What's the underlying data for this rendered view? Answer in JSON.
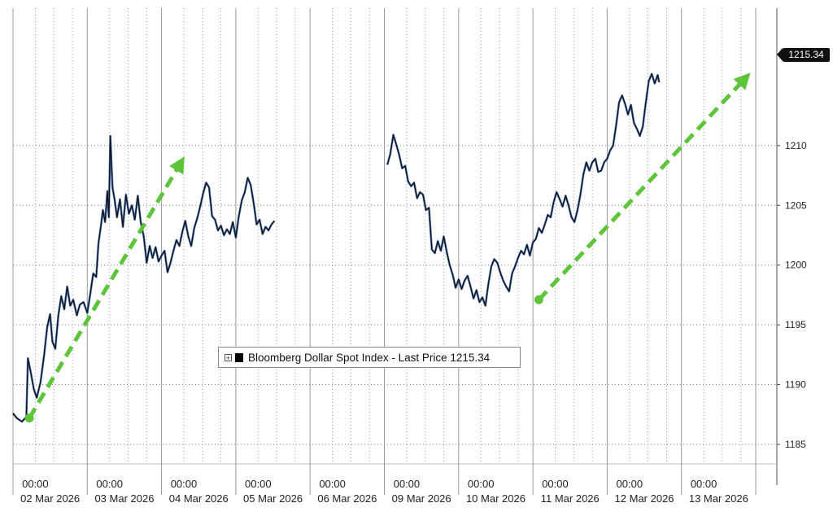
{
  "chart_data": {
    "type": "line",
    "title": "",
    "series": [
      {
        "name": "Bloomberg Dollar Spot Index - Last Price",
        "last_value_label": "1215.34",
        "points": [
          [
            0.0,
            1187.6
          ],
          [
            0.05,
            1187.2
          ],
          [
            0.12,
            1186.9
          ],
          [
            0.18,
            1187.3
          ],
          [
            0.2,
            1192.2
          ],
          [
            0.24,
            1191.0
          ],
          [
            0.28,
            1189.6
          ],
          [
            0.32,
            1188.9
          ],
          [
            0.37,
            1190.2
          ],
          [
            0.42,
            1192.5
          ],
          [
            0.46,
            1194.8
          ],
          [
            0.5,
            1195.9
          ],
          [
            0.53,
            1193.6
          ],
          [
            0.57,
            1193.0
          ],
          [
            0.61,
            1195.8
          ],
          [
            0.65,
            1197.4
          ],
          [
            0.69,
            1196.3
          ],
          [
            0.73,
            1198.2
          ],
          [
            0.77,
            1196.6
          ],
          [
            0.81,
            1197.1
          ],
          [
            0.86,
            1195.8
          ],
          [
            0.9,
            1196.7
          ],
          [
            0.95,
            1196.9
          ],
          [
            1.0,
            1196.0
          ],
          [
            1.04,
            1197.6
          ],
          [
            1.08,
            1199.3
          ],
          [
            1.12,
            1199.0
          ],
          [
            1.15,
            1201.8
          ],
          [
            1.18,
            1203.1
          ],
          [
            1.21,
            1204.6
          ],
          [
            1.24,
            1203.6
          ],
          [
            1.27,
            1206.2
          ],
          [
            1.29,
            1204.0
          ],
          [
            1.31,
            1210.8
          ],
          [
            1.34,
            1206.5
          ],
          [
            1.37,
            1205.4
          ],
          [
            1.4,
            1204.0
          ],
          [
            1.44,
            1205.5
          ],
          [
            1.48,
            1203.2
          ],
          [
            1.52,
            1205.9
          ],
          [
            1.56,
            1204.3
          ],
          [
            1.6,
            1205.0
          ],
          [
            1.64,
            1203.8
          ],
          [
            1.68,
            1205.8
          ],
          [
            1.72,
            1203.6
          ],
          [
            1.76,
            1202.4
          ],
          [
            1.8,
            1200.2
          ],
          [
            1.84,
            1201.6
          ],
          [
            1.88,
            1200.6
          ],
          [
            1.92,
            1201.5
          ],
          [
            1.96,
            1200.3
          ],
          [
            2.0,
            1200.8
          ],
          [
            2.04,
            1201.2
          ],
          [
            2.08,
            1199.4
          ],
          [
            2.12,
            1200.2
          ],
          [
            2.16,
            1201.2
          ],
          [
            2.2,
            1202.1
          ],
          [
            2.24,
            1201.6
          ],
          [
            2.28,
            1202.8
          ],
          [
            2.32,
            1203.7
          ],
          [
            2.36,
            1202.4
          ],
          [
            2.4,
            1201.6
          ],
          [
            2.44,
            1203.1
          ],
          [
            2.48,
            1203.9
          ],
          [
            2.52,
            1204.9
          ],
          [
            2.56,
            1206.0
          ],
          [
            2.6,
            1206.9
          ],
          [
            2.64,
            1206.5
          ],
          [
            2.68,
            1204.1
          ],
          [
            2.72,
            1203.8
          ],
          [
            2.76,
            1202.9
          ],
          [
            2.8,
            1203.3
          ],
          [
            2.84,
            1202.5
          ],
          [
            2.88,
            1203.0
          ],
          [
            2.92,
            1202.6
          ],
          [
            2.96,
            1203.6
          ],
          [
            3.0,
            1202.3
          ],
          [
            3.04,
            1204.1
          ],
          [
            3.08,
            1205.4
          ],
          [
            3.12,
            1206.1
          ],
          [
            3.16,
            1207.3
          ],
          [
            3.2,
            1206.7
          ],
          [
            3.24,
            1205.2
          ],
          [
            3.28,
            1203.4
          ],
          [
            3.32,
            1203.8
          ],
          [
            3.36,
            1202.6
          ],
          [
            3.4,
            1203.2
          ],
          [
            3.44,
            1202.9
          ],
          [
            3.48,
            1203.4
          ],
          [
            3.52,
            1203.7
          ],
          null,
          [
            5.04,
            1208.4
          ],
          [
            5.08,
            1209.3
          ],
          [
            5.12,
            1210.9
          ],
          [
            5.16,
            1210.1
          ],
          [
            5.2,
            1209.2
          ],
          [
            5.24,
            1208.1
          ],
          [
            5.28,
            1208.3
          ],
          [
            5.32,
            1207.0
          ],
          [
            5.36,
            1206.6
          ],
          [
            5.4,
            1206.9
          ],
          [
            5.44,
            1205.6
          ],
          [
            5.48,
            1206.1
          ],
          [
            5.52,
            1205.9
          ],
          [
            5.56,
            1204.6
          ],
          [
            5.6,
            1204.8
          ],
          [
            5.64,
            1201.3
          ],
          [
            5.68,
            1201.0
          ],
          [
            5.72,
            1202.0
          ],
          [
            5.76,
            1201.2
          ],
          [
            5.8,
            1202.4
          ],
          [
            5.84,
            1201.1
          ],
          [
            5.88,
            1200.0
          ],
          [
            5.92,
            1199.2
          ],
          [
            5.96,
            1198.1
          ],
          [
            6.0,
            1198.8
          ],
          [
            6.04,
            1198.0
          ],
          [
            6.08,
            1198.7
          ],
          [
            6.12,
            1199.1
          ],
          [
            6.16,
            1198.2
          ],
          [
            6.2,
            1197.2
          ],
          [
            6.24,
            1197.9
          ],
          [
            6.28,
            1196.9
          ],
          [
            6.32,
            1197.3
          ],
          [
            6.36,
            1196.6
          ],
          [
            6.4,
            1198.4
          ],
          [
            6.44,
            1199.9
          ],
          [
            6.48,
            1200.5
          ],
          [
            6.52,
            1200.2
          ],
          [
            6.56,
            1199.4
          ],
          [
            6.6,
            1198.7
          ],
          [
            6.64,
            1198.2
          ],
          [
            6.68,
            1197.8
          ],
          [
            6.72,
            1199.3
          ],
          [
            6.76,
            1199.9
          ],
          [
            6.8,
            1200.6
          ],
          [
            6.84,
            1201.2
          ],
          [
            6.88,
            1200.9
          ],
          [
            6.92,
            1201.7
          ],
          [
            6.96,
            1200.8
          ],
          [
            7.0,
            1201.9
          ],
          [
            7.04,
            1202.2
          ],
          [
            7.08,
            1203.1
          ],
          [
            7.12,
            1202.7
          ],
          [
            7.16,
            1203.4
          ],
          [
            7.2,
            1204.2
          ],
          [
            7.24,
            1204.0
          ],
          [
            7.28,
            1205.3
          ],
          [
            7.32,
            1206.1
          ],
          [
            7.36,
            1205.5
          ],
          [
            7.4,
            1204.9
          ],
          [
            7.44,
            1205.8
          ],
          [
            7.48,
            1205.0
          ],
          [
            7.52,
            1204.0
          ],
          [
            7.56,
            1203.6
          ],
          [
            7.6,
            1204.6
          ],
          [
            7.64,
            1205.9
          ],
          [
            7.68,
            1207.6
          ],
          [
            7.72,
            1208.6
          ],
          [
            7.76,
            1207.9
          ],
          [
            7.8,
            1208.6
          ],
          [
            7.84,
            1208.9
          ],
          [
            7.88,
            1207.8
          ],
          [
            7.92,
            1207.9
          ],
          [
            7.96,
            1208.6
          ],
          [
            8.0,
            1208.9
          ],
          [
            8.04,
            1209.6
          ],
          [
            8.08,
            1210.0
          ],
          [
            8.12,
            1211.7
          ],
          [
            8.16,
            1213.6
          ],
          [
            8.2,
            1214.2
          ],
          [
            8.24,
            1213.5
          ],
          [
            8.28,
            1212.6
          ],
          [
            8.32,
            1213.4
          ],
          [
            8.36,
            1211.9
          ],
          [
            8.4,
            1211.4
          ],
          [
            8.44,
            1210.8
          ],
          [
            8.48,
            1211.6
          ],
          [
            8.52,
            1213.6
          ],
          [
            8.56,
            1215.4
          ],
          [
            8.6,
            1216.0
          ],
          [
            8.64,
            1215.2
          ],
          [
            8.68,
            1215.9
          ],
          [
            8.7,
            1215.3
          ]
        ]
      }
    ],
    "ylim": [
      1183.5,
      1221.5
    ],
    "yticks": [
      1185,
      1190,
      1195,
      1200,
      1205,
      1210
    ],
    "x_day_labels": [
      "02 Mar 2026",
      "03 Mar 2026",
      "04 Mar 2026",
      "05 Mar 2026",
      "06 Mar 2026",
      "09 Mar 2026",
      "10 Mar 2026",
      "11 Mar 2026",
      "12 Mar 2026",
      "13 Mar 2026"
    ],
    "x_time_label": "00:00",
    "x_time_positions": [
      0.3,
      1.3,
      2.3,
      3.3,
      4.3,
      5.3,
      6.3,
      7.3,
      8.3,
      9.3
    ],
    "annotations": [
      {
        "type": "trend-arrow",
        "color": "#5ec43a",
        "from": [
          0.22,
          1187.2
        ],
        "to": [
          2.31,
          1209.1
        ]
      },
      {
        "type": "trend-arrow",
        "color": "#5ec43a",
        "from": [
          7.08,
          1197.1
        ],
        "to": [
          9.93,
          1216.1
        ]
      }
    ],
    "grid": true,
    "legend": "center-bottom"
  },
  "legend": {
    "text": "Bloomberg Dollar Spot Index - Last Price 1215.34"
  },
  "last_tag": "1215.34",
  "colors": {
    "line": "#111111",
    "line_highlight": "#2f63b3",
    "arrow": "#5ec43a",
    "grid": "#808080"
  }
}
